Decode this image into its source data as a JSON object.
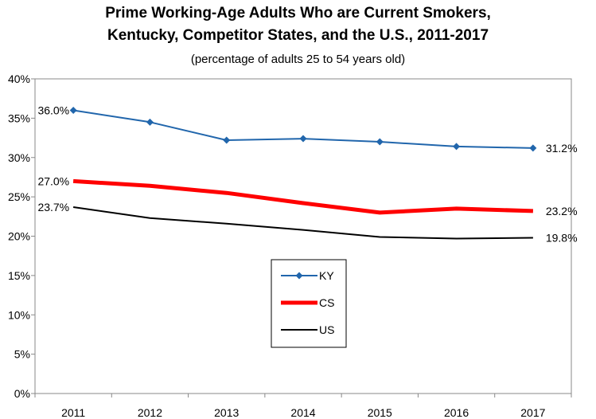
{
  "chart_data": {
    "type": "line",
    "title": "Prime Working-Age Adults Who are Current Smokers,",
    "title_line2": "Kentucky, Competitor States, and the U.S., 2011-2017",
    "subtitle": "(percentage of adults 25 to 54 years old)",
    "xlabel": "",
    "ylabel": "",
    "x": [
      "2011",
      "2012",
      "2013",
      "2014",
      "2015",
      "2016",
      "2017"
    ],
    "ylim": [
      0,
      40
    ],
    "yticks": [
      "0%",
      "5%",
      "10%",
      "15%",
      "20%",
      "25%",
      "30%",
      "35%",
      "40%"
    ],
    "grid": false,
    "legend_position": "bottom-center",
    "series": [
      {
        "name": "KY",
        "values": [
          36.0,
          34.5,
          32.2,
          32.4,
          32.0,
          31.4,
          31.2
        ],
        "color": "#2166ac",
        "marker": "diamond",
        "labels": {
          "first": "36.0%",
          "last": "31.2%"
        }
      },
      {
        "name": "CS",
        "values": [
          27.0,
          26.4,
          25.5,
          24.2,
          23.0,
          23.5,
          23.2
        ],
        "color": "#ff0000",
        "marker": "none",
        "labels": {
          "first": "27.0%",
          "last": "23.2%"
        }
      },
      {
        "name": "US",
        "values": [
          23.7,
          22.3,
          21.6,
          20.8,
          19.9,
          19.7,
          19.8
        ],
        "color": "#000000",
        "marker": "none",
        "labels": {
          "first": "23.7%",
          "last": "19.8%"
        }
      }
    ]
  }
}
